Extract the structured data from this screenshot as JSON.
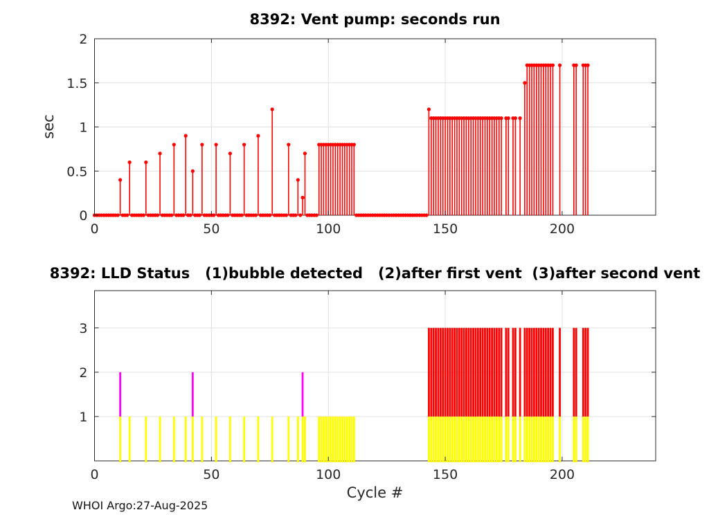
{
  "figure": {
    "footer": "WHOI Argo:27-Aug-2025"
  },
  "chart_data": [
    {
      "type": "stem",
      "title": "8392: Vent pump: seconds run",
      "ylabel": "sec",
      "xlim": [
        0,
        240
      ],
      "ylim": [
        0,
        2
      ],
      "xticks": [
        0,
        50,
        100,
        150,
        200
      ],
      "xticklabels": [
        "0",
        "50",
        "100",
        "150",
        "200"
      ],
      "yticks": [
        0,
        0.5,
        1,
        1.5,
        2
      ],
      "yticklabels": [
        "0",
        "0.5",
        "1",
        "1.5",
        "2"
      ],
      "grid": true,
      "color": "#ff0000",
      "zero_runs": [
        [
          0,
          10
        ],
        [
          12,
          14
        ],
        [
          16,
          21
        ],
        [
          23,
          27
        ],
        [
          29,
          33
        ],
        [
          35,
          38
        ],
        [
          40,
          41
        ],
        [
          43,
          45
        ],
        [
          47,
          51
        ],
        [
          53,
          57
        ],
        [
          59,
          63
        ],
        [
          65,
          69
        ],
        [
          71,
          75
        ],
        [
          77,
          82
        ],
        [
          84,
          86
        ],
        [
          88,
          88
        ],
        [
          91,
          95
        ],
        [
          112,
          142
        ]
      ],
      "stems": [
        [
          11,
          0.4
        ],
        [
          15,
          0.6
        ],
        [
          22,
          0.6
        ],
        [
          28,
          0.7
        ],
        [
          34,
          0.8
        ],
        [
          39,
          0.9
        ],
        [
          42,
          0.5
        ],
        [
          46,
          0.8
        ],
        [
          52,
          0.8
        ],
        [
          58,
          0.7
        ],
        [
          64,
          0.8
        ],
        [
          70,
          0.9
        ],
        [
          76,
          1.2
        ],
        [
          83,
          0.8
        ],
        [
          87,
          0.4
        ],
        [
          89,
          0.2
        ],
        [
          90,
          0.7
        ],
        [
          143,
          1.2
        ],
        [
          184,
          1.5
        ]
      ],
      "runs": [
        [
          96,
          111,
          0.8
        ],
        [
          144,
          174,
          1.1
        ],
        [
          176,
          177,
          1.1
        ],
        [
          179,
          180,
          1.1
        ],
        [
          182,
          182,
          1.1
        ],
        [
          185,
          196,
          1.7
        ],
        [
          199,
          199,
          1.7
        ],
        [
          205,
          206,
          1.7
        ],
        [
          209,
          211,
          1.7
        ]
      ]
    },
    {
      "type": "status-bars",
      "title": "8392: LLD Status   (1)bubble detected   (2)after first vent  (3)after second vent",
      "xlabel": "Cycle #",
      "xlim": [
        0,
        240
      ],
      "ylim": [
        0,
        3.84
      ],
      "xticks": [
        0,
        50,
        100,
        150,
        200
      ],
      "xticklabels": [
        "0",
        "50",
        "100",
        "150",
        "200"
      ],
      "yticks": [
        1,
        2,
        3
      ],
      "yticklabels": [
        "1",
        "2",
        "3"
      ],
      "grid": true,
      "colors": {
        "status1": "#ffff00",
        "status2": "#ff00ff",
        "status3": "#ff0000"
      },
      "status1_singles": [
        15,
        22,
        28,
        34,
        39,
        46,
        52,
        58,
        64,
        70,
        76,
        83,
        87,
        90
      ],
      "status1_runs": [
        [
          96,
          111
        ]
      ],
      "status2_singles": [
        11,
        42,
        89
      ],
      "status3_runs": [
        [
          143,
          174
        ],
        [
          176,
          177
        ],
        [
          179,
          180
        ],
        [
          182,
          182
        ],
        [
          184,
          196
        ],
        [
          199,
          199
        ],
        [
          205,
          206
        ],
        [
          209,
          211
        ]
      ]
    }
  ]
}
